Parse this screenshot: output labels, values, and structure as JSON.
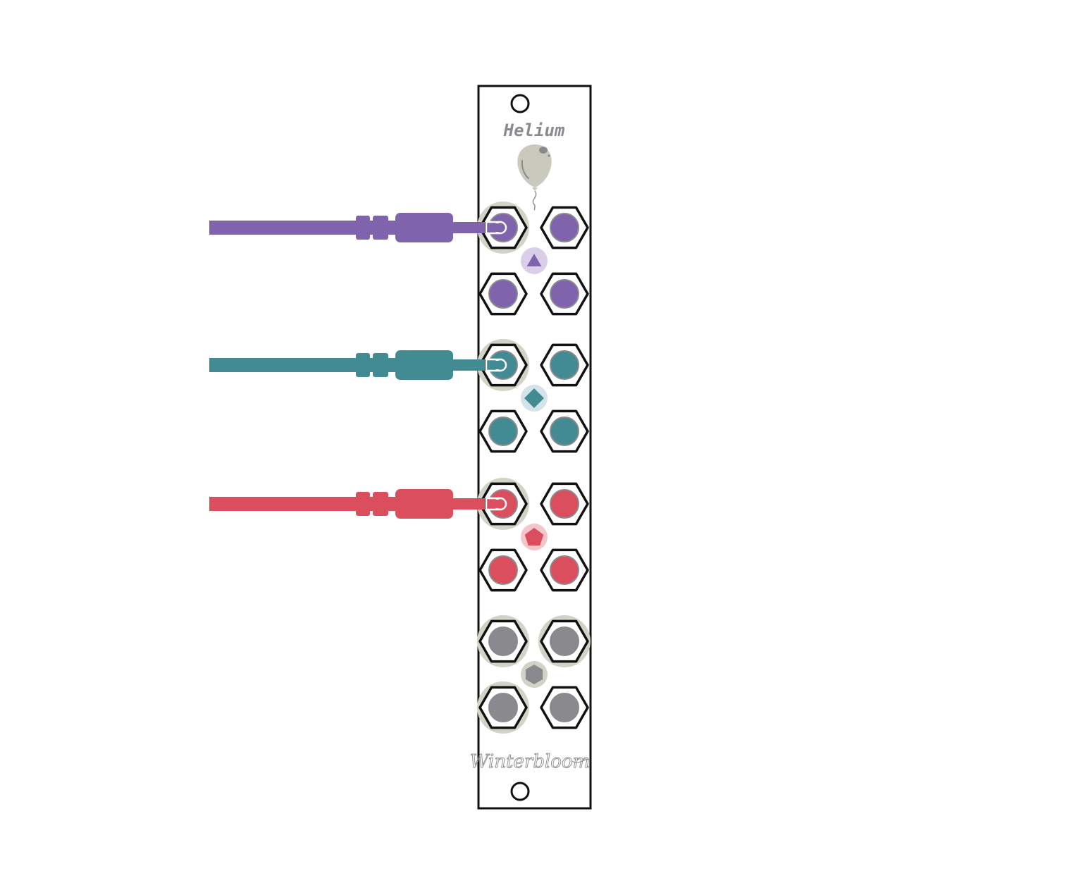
{
  "module": {
    "name": "Helium",
    "brand": "Winterbloom",
    "logo_icon": "balloon-icon"
  },
  "colors": {
    "purple": "#7f63ad",
    "purple_light": "#d9cfe8",
    "teal": "#438b92",
    "teal_light": "#d3e3e8",
    "red": "#da4e5d",
    "red_light": "#f4c6cb",
    "gray": "#8a8a8e",
    "highlight": "#d3d2c6",
    "panel": "#ffffff",
    "outline": "#111111"
  },
  "groups": [
    {
      "color": "purple",
      "symbol": "triangle-icon",
      "patched": true
    },
    {
      "color": "teal",
      "symbol": "diamond-icon",
      "patched": true
    },
    {
      "color": "red",
      "symbol": "pentagon-icon",
      "patched": true
    },
    {
      "color": "gray",
      "symbol": "hexagon-icon",
      "patched": false
    }
  ]
}
